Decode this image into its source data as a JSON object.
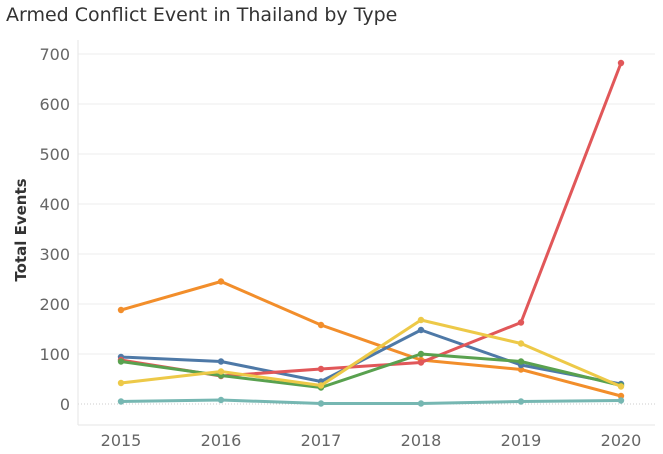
{
  "title": "Armed Conflict Event in Thailand by Type",
  "chart_data": {
    "type": "line",
    "title": "Armed Conflict Event in Thailand by Type",
    "xlabel": "",
    "ylabel": "Total Events",
    "x": [
      "2015",
      "2016",
      "2017",
      "2018",
      "2019",
      "2020"
    ],
    "ylim": [
      0,
      700
    ],
    "yticks": [
      0,
      100,
      200,
      300,
      400,
      500,
      600,
      700
    ],
    "grid": true,
    "series": [
      {
        "color": "#f28e2b",
        "values": [
          188,
          245,
          158,
          88,
          69,
          16
        ]
      },
      {
        "color": "#4e79a7",
        "values": [
          94,
          85,
          45,
          148,
          78,
          40
        ]
      },
      {
        "color": "#e15759",
        "values": [
          88,
          56,
          70,
          83,
          163,
          682
        ]
      },
      {
        "color": "#59a14f",
        "values": [
          85,
          57,
          33,
          100,
          85,
          37
        ]
      },
      {
        "color": "#edc948",
        "values": [
          42,
          65,
          37,
          168,
          121,
          35
        ]
      },
      {
        "color": "#76b7b2",
        "values": [
          5,
          8,
          1,
          1,
          5,
          7
        ]
      }
    ]
  }
}
